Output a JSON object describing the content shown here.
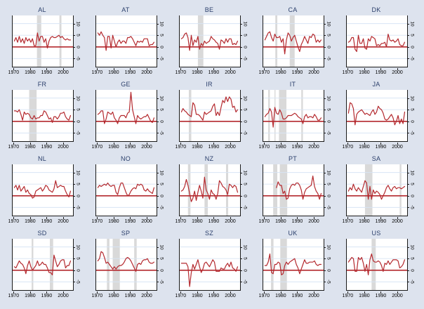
{
  "chart_data": {
    "type": "line",
    "description": "Small-multiples time-series panel chart: annual series (red line) per country, red zero reference line, gray vertical shaded bands, 1970-2004",
    "layout": {
      "rows": 4,
      "cols": 5,
      "legend": "none",
      "grid": "horizontal-only"
    },
    "x_range": [
      1969,
      2005.5
    ],
    "y_range": [
      -8.5,
      13.5
    ],
    "x_ticks": [
      1970,
      1980,
      1990,
      2000
    ],
    "y_ticks": [
      10,
      5,
      0,
      -5
    ],
    "years_start": 1970,
    "colors": {
      "page_bg": "#dde3ee",
      "plot_bg": "#ffffff",
      "line": "#b4292e",
      "zero_line": "#b4292e",
      "band": "#d9d9d9",
      "grid": "#d8e4f4",
      "title": "#2b3f6b",
      "axis": "#1a1a1a"
    },
    "panels": [
      {
        "title": "AL",
        "bands": [
          [
            1983.7,
            1986.3
          ],
          [
            1997.3,
            1998.5
          ]
        ],
        "values": [
          2.5,
          4,
          2,
          4.5,
          2,
          3.5,
          1.5,
          4,
          2.5,
          3.5,
          2,
          3.5,
          0.5,
          0.5,
          6,
          2.5,
          4.5,
          4.5,
          2,
          3.5,
          -0.5,
          2.5,
          4,
          4.5,
          4,
          4,
          4.5,
          5,
          4,
          4.5,
          3.5,
          3,
          3.5,
          3,
          3
        ]
      },
      {
        "title": "AT",
        "bands": [],
        "values": [
          6,
          5,
          6.5,
          5,
          4,
          -1.5,
          4.5,
          4.5,
          -0.5,
          5,
          2.5,
          0,
          2,
          3,
          1.5,
          2.5,
          2.5,
          1.5,
          4,
          4,
          4.5,
          3.5,
          2,
          0.5,
          2.5,
          2,
          2.5,
          2,
          3.5,
          3.5,
          3.5,
          0.5,
          1,
          1,
          2
        ]
      },
      {
        "title": "BE",
        "bands": [
          [
            1980,
            1983.3
          ]
        ],
        "values": [
          3.5,
          4,
          5.5,
          6,
          4,
          -1.5,
          5,
          0.5,
          3,
          2,
          4.5,
          -1,
          1.5,
          0.5,
          2.5,
          1.5,
          2,
          2.5,
          4.5,
          3.5,
          3,
          2,
          1.5,
          -1,
          3,
          2.5,
          1.5,
          3.5,
          2,
          3.5,
          3.5,
          1,
          1.5,
          1,
          2.5
        ]
      },
      {
        "title": "CA",
        "bands": [
          [
            1976.3,
            1977.5
          ],
          [
            1985,
            1988
          ]
        ],
        "values": [
          3,
          4.5,
          6,
          6.5,
          4,
          2.5,
          5.5,
          4,
          4,
          4.5,
          2,
          3.5,
          -3,
          3,
          6,
          5,
          2.5,
          4,
          5,
          2.5,
          0,
          -2,
          1,
          2.5,
          4.5,
          3,
          1.5,
          4.5,
          4,
          5.5,
          5,
          2,
          3,
          2,
          3
        ]
      },
      {
        "title": "DK",
        "bands": [],
        "values": [
          2,
          2.5,
          4,
          4,
          -1,
          -2,
          5,
          1.5,
          1.5,
          3.5,
          -0.5,
          -1,
          3.5,
          2.5,
          4.5,
          4,
          3.5,
          0.5,
          1,
          0.5,
          1.5,
          1.5,
          2,
          0,
          5.5,
          3,
          2.5,
          3,
          2,
          2.5,
          3.5,
          1,
          0.5,
          0.5,
          2
        ]
      },
      {
        "title": "FR",
        "bands": [
          [
            1979,
            1983.5
          ]
        ],
        "values": [
          4.5,
          4.5,
          4,
          5,
          3,
          0.5,
          4,
          3,
          3.5,
          3,
          1.5,
          1,
          2.5,
          1,
          1.5,
          1.5,
          2.5,
          2.5,
          4.5,
          4,
          2.5,
          1,
          1.5,
          -0.5,
          2,
          2,
          1,
          2,
          3.5,
          3.5,
          4,
          2,
          1,
          0.5,
          2.5
        ]
      },
      {
        "title": "GE",
        "bands": [],
        "values": [
          3,
          3.5,
          4.5,
          4.5,
          -1,
          1,
          4,
          3.5,
          3,
          4,
          1.5,
          0.5,
          -1,
          1.5,
          2.5,
          2.5,
          2.5,
          1.5,
          3.5,
          4,
          12.5,
          5,
          2,
          -1,
          2.5,
          1.5,
          1,
          1.5,
          2,
          2,
          3,
          1.5,
          0,
          -0.5,
          1.5
        ]
      },
      {
        "title": "IR",
        "bands": [
          [
            1974.5,
            1976
          ]
        ],
        "values": [
          4,
          5.5,
          4.5,
          4,
          3,
          2.5,
          2,
          8,
          7,
          3,
          3,
          2.5,
          1.5,
          0.5,
          4,
          3,
          3.5,
          4,
          4.5,
          6.5,
          7.5,
          2.5,
          4,
          2.5,
          6,
          9,
          8,
          10.5,
          8.5,
          10.5,
          9.5,
          6,
          6.5,
          4,
          5
        ]
      },
      {
        "title": "IT",
        "bands": [
          [
            1972,
            1973
          ],
          [
            1975.8,
            1976.4
          ],
          [
            1978.5,
            1983
          ],
          [
            1992,
            1993
          ]
        ],
        "values": [
          2,
          3,
          3.5,
          5.5,
          4,
          -2.5,
          6,
          3.5,
          3,
          5,
          3.5,
          1,
          1,
          1.5,
          2.5,
          2.5,
          2.5,
          3,
          3.5,
          3,
          2,
          1.5,
          1,
          -1,
          2,
          3,
          1.5,
          2,
          2,
          1.5,
          3,
          2,
          0.5,
          0.5,
          1.5
        ]
      },
      {
        "title": "JA",
        "bands": [],
        "values": [
          3.5,
          8,
          7.5,
          5.5,
          -1.5,
          3,
          4,
          4.5,
          5,
          4,
          3,
          3.5,
          3,
          2.5,
          4,
          5,
          3,
          4,
          6.5,
          5.5,
          5,
          3.5,
          1,
          0.5,
          1,
          2,
          3,
          1.5,
          -1.5,
          0,
          2.5,
          -1,
          1,
          -1,
          4
        ]
      },
      {
        "title": "NL",
        "bands": [],
        "values": [
          3.5,
          4.5,
          2.5,
          4.5,
          2,
          3,
          4,
          1.5,
          2.5,
          1,
          0.5,
          -1,
          -0.5,
          2,
          2.5,
          3,
          3.5,
          2,
          3,
          4.5,
          4,
          2.5,
          2,
          1.5,
          3,
          6.5,
          3.5,
          4,
          4.5,
          4,
          4,
          2,
          0.5,
          -0.5,
          2
        ]
      },
      {
        "title": "NO",
        "bands": [],
        "values": [
          3.5,
          4.5,
          4,
          4.5,
          5,
          4.5,
          5.5,
          4.5,
          4,
          4.5,
          4.5,
          1.5,
          0.5,
          3.5,
          5.5,
          5.5,
          3.5,
          1.5,
          0,
          0.5,
          2,
          3,
          3.5,
          3,
          5,
          4.5,
          5,
          4.5,
          2.5,
          2,
          3,
          2,
          1.5,
          1,
          3.5
        ]
      },
      {
        "title": "NZ",
        "bands": [
          [
            1974,
            1975.5
          ],
          [
            1984,
            1986
          ],
          [
            1997,
            1998.3
          ]
        ],
        "values": [
          2,
          2.5,
          4,
          7,
          4.5,
          1,
          -2.5,
          -1,
          2,
          -2,
          1.5,
          4.5,
          2,
          -1,
          8,
          2.5,
          1,
          -1.5,
          2.5,
          1,
          0.5,
          -1.5,
          1,
          6.5,
          5.5,
          4,
          3.5,
          2.5,
          0.5,
          5,
          4.5,
          3.5,
          4.5,
          4,
          1.5
        ]
      },
      {
        "title": "PT",
        "bands": [
          [
            1975,
            1977.5
          ],
          [
            1979,
            1983.5
          ]
        ],
        "values": [
          null,
          null,
          null,
          null,
          null,
          null,
          null,
          3.5,
          6,
          4.5,
          4.5,
          1,
          2,
          -1.5,
          -1,
          3,
          4.5,
          5,
          4.5,
          5.5,
          5.5,
          4.5,
          2.5,
          -1.5,
          1.5,
          3,
          3.5,
          4,
          4.5,
          8.5,
          4,
          2,
          1,
          -1.5,
          1
        ]
      },
      {
        "title": "SA",
        "bands": [
          [
            1980,
            1984.5
          ],
          [
            2001,
            2002
          ]
        ],
        "values": [
          2,
          3.5,
          2.5,
          5,
          3,
          2,
          3.5,
          2.5,
          1.5,
          4,
          6.5,
          5.5,
          -1.5,
          4,
          -1.5,
          2.5,
          1,
          2,
          1.5,
          0.5,
          -1.5,
          0,
          1.5,
          3.5,
          4.5,
          3,
          2,
          3.5,
          4,
          3,
          3.5,
          3.5,
          3,
          3.5,
          4
        ]
      },
      {
        "title": "SD",
        "bands": [
          [
            1980.5,
            1981.5
          ],
          [
            1991.5,
            1993.5
          ]
        ],
        "values": [
          1.5,
          1,
          2.5,
          4,
          3,
          2.5,
          1,
          -1.5,
          2,
          4,
          1.5,
          0,
          1,
          2,
          4,
          2,
          2.5,
          3.5,
          2.5,
          2.5,
          1,
          -1,
          -1,
          -2,
          6.5,
          4,
          1.5,
          2.5,
          4,
          4.5,
          4.5,
          1,
          2,
          2,
          4
        ]
      },
      {
        "title": "SP",
        "bands": [
          [
            1975.5,
            1977
          ],
          [
            1979,
            1983.3
          ],
          [
            1992,
            1993.5
          ]
        ],
        "values": [
          4,
          5,
          8,
          7.5,
          5.5,
          3,
          3.5,
          2.5,
          1.5,
          0.5,
          1.5,
          0.5,
          1.5,
          2,
          2,
          2.5,
          3.5,
          5,
          5.5,
          5,
          4,
          2.5,
          1,
          -0.5,
          2.5,
          3,
          2.5,
          4,
          4.5,
          4.5,
          5,
          3.5,
          3,
          3,
          3.5
        ]
      },
      {
        "title": "SZ",
        "bands": [],
        "values": [
          3,
          3,
          3,
          3,
          1.5,
          -7,
          -1,
          2.5,
          0.5,
          2.5,
          4.5,
          1.5,
          -1,
          0.5,
          3,
          3.5,
          2.5,
          1.5,
          3,
          4.5,
          3.5,
          -0.5,
          -0.5,
          -0.5,
          1,
          0.5,
          0.5,
          2,
          3,
          1.5,
          3.5,
          1,
          0.5,
          -0.5,
          1.5
        ]
      },
      {
        "title": "UK",
        "bands": [
          [
            1973.7,
            1975.2
          ],
          [
            1979.3,
            1983.3
          ]
        ],
        "values": [
          2,
          2,
          3.5,
          7,
          -1,
          -1.5,
          2.5,
          2.5,
          3.5,
          3,
          -2,
          -1.5,
          2,
          3.5,
          2.5,
          3.5,
          4,
          4.5,
          5,
          2.5,
          1,
          -1.5,
          0.5,
          2.5,
          4.5,
          3,
          3,
          3.5,
          3.5,
          3.5,
          4,
          2.5,
          2,
          2.5,
          2.5
        ]
      },
      {
        "title": "US",
        "bands": [
          [
            1984,
            1986.5
          ]
        ],
        "values": [
          3.5,
          4.5,
          5.5,
          5,
          -0.5,
          -0.5,
          5.5,
          4.5,
          5.5,
          3,
          -0.5,
          2.5,
          -2,
          4.5,
          7,
          4,
          3.5,
          3.5,
          4,
          3.5,
          2,
          -0.5,
          3,
          2.5,
          4,
          2.5,
          3.5,
          4.5,
          4.5,
          4.5,
          4,
          1,
          1.5,
          2.5,
          4.5
        ]
      }
    ]
  }
}
